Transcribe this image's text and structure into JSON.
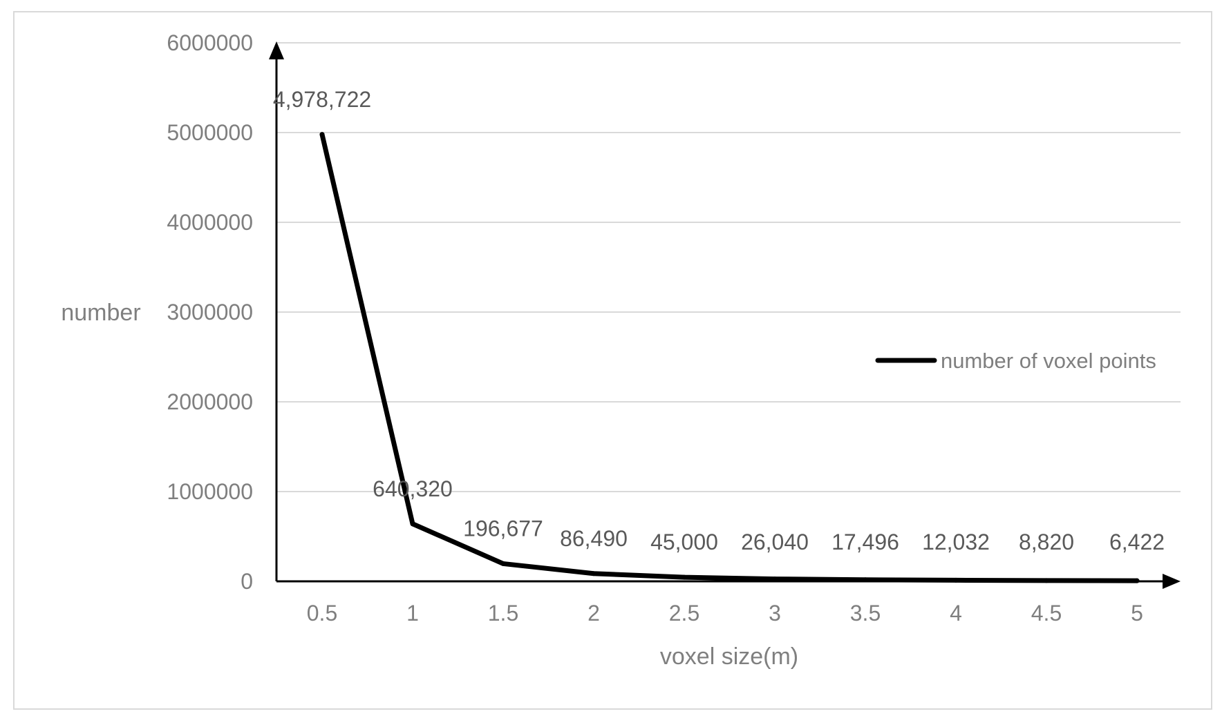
{
  "chart_data": {
    "type": "line",
    "title": "",
    "xlabel": "voxel size(m)",
    "ylabel": "number",
    "x": [
      0.5,
      1,
      1.5,
      2,
      2.5,
      3,
      3.5,
      4,
      4.5,
      5
    ],
    "x_tick_labels": [
      "0.5",
      "1",
      "1.5",
      "2",
      "2.5",
      "3",
      "3.5",
      "4",
      "4.5",
      "5"
    ],
    "y_ticks": [
      0,
      1000000,
      2000000,
      3000000,
      4000000,
      5000000,
      6000000
    ],
    "y_tick_labels": [
      "0",
      "1000000",
      "2000000",
      "3000000",
      "4000000",
      "5000000",
      "6000000"
    ],
    "ylim": [
      0,
      6000000
    ],
    "grid": true,
    "legend_position": "right",
    "series": [
      {
        "name": "number of voxel points",
        "color": "#000000",
        "values": [
          4978722,
          640320,
          196677,
          86490,
          45000,
          26040,
          17496,
          12032,
          8820,
          6422
        ],
        "data_labels": [
          "4,978,722",
          "640,320",
          "196,677",
          "86,490",
          "45,000",
          "26,040",
          "17,496",
          "12,032",
          "8,820",
          "6,422"
        ]
      }
    ]
  }
}
